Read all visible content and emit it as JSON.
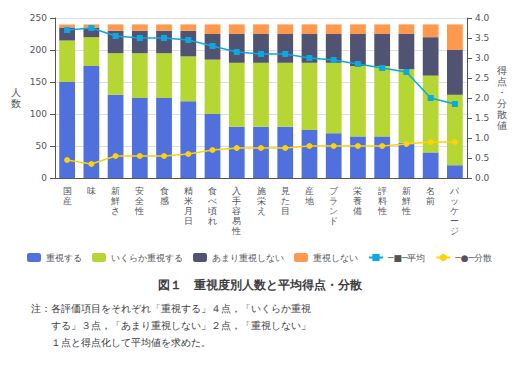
{
  "chart_data": {
    "type": "bar",
    "stacked": true,
    "title": "図１　重視度別人数と平均得点・分散",
    "annotations": [
      "注：各評価項目をそれぞれ「重視する」４点，「いくらか重視",
      "　　する」３点，「あまり重視しない」２点，「重視しない」",
      "　　１点と得点化して平均値を求めた。"
    ],
    "categories": [
      "国\n産",
      "味",
      "新\n鮮\nさ",
      "安\n全\n性",
      "食\n感",
      "精\n米\n月\n日",
      "食\nべ\n頃\nれ",
      "入\n手\n容\n易\n性",
      "施\n栄\nえ",
      "見\nた\n目",
      "産\n地",
      "ブ\nラ\nン\nド",
      "栄\n養\n備",
      "評\n料\n性",
      "新\n鮮\n性",
      "名\n前",
      "パ\nッ\nケ\nー\nジ"
    ],
    "ylabel": "人\n数",
    "y2label": "得\n点\n・\n分\n散\n値",
    "ylim": [
      0,
      250
    ],
    "yticks": [
      0,
      50,
      100,
      150,
      200,
      250
    ],
    "y2lim": [
      0.0,
      4.0
    ],
    "y2ticks": [
      {
        "value": 0.0,
        "label": "0.0"
      },
      {
        "value": 0.5,
        "label": "0.5"
      },
      {
        "value": 1.0,
        "label": "1.0"
      },
      {
        "value": 1.5,
        "label": "1.5"
      },
      {
        "value": 2.0,
        "label": "2.0"
      },
      {
        "value": 2.5,
        "label": "2.5"
      },
      {
        "value": 3.0,
        "label": "3.0"
      },
      {
        "value": 3.5,
        "label": "3.5"
      },
      {
        "value": 4.0,
        "label": "4.0"
      }
    ],
    "grid": true,
    "legend": "bottom",
    "series": [
      {
        "name": "重視する",
        "type": "bar",
        "values": [
          150,
          175,
          130,
          125,
          125,
          120,
          100,
          80,
          80,
          80,
          75,
          70,
          65,
          65,
          55,
          40,
          20
        ]
      },
      {
        "name": "いくらか重視する",
        "type": "bar",
        "values": [
          65,
          45,
          65,
          70,
          70,
          70,
          85,
          100,
          100,
          100,
          105,
          110,
          110,
          110,
          115,
          120,
          110
        ]
      },
      {
        "name": "あまり重視しない",
        "type": "bar",
        "values": [
          20,
          15,
          35,
          35,
          35,
          40,
          40,
          45,
          45,
          45,
          45,
          45,
          50,
          50,
          55,
          60,
          70
        ]
      },
      {
        "name": "重視しない",
        "type": "bar",
        "values": [
          5,
          5,
          10,
          10,
          10,
          10,
          15,
          15,
          15,
          15,
          15,
          15,
          15,
          15,
          15,
          20,
          40
        ]
      },
      {
        "name": "─■─平均",
        "type": "line",
        "axis": "y2",
        "marker": "square",
        "line_style": "solid",
        "values": [
          3.7,
          3.75,
          3.55,
          3.5,
          3.5,
          3.45,
          3.3,
          3.15,
          3.1,
          3.1,
          3.0,
          2.95,
          2.85,
          2.75,
          2.65,
          2.0,
          1.85
        ]
      },
      {
        "name": "─●─分散",
        "type": "line",
        "axis": "y2",
        "marker": "circle",
        "line_style": "solid",
        "values": [
          0.45,
          0.35,
          0.55,
          0.55,
          0.55,
          0.6,
          0.7,
          0.75,
          0.75,
          0.75,
          0.8,
          0.8,
          0.8,
          0.8,
          0.85,
          0.9,
          0.9
        ]
      }
    ]
  }
}
